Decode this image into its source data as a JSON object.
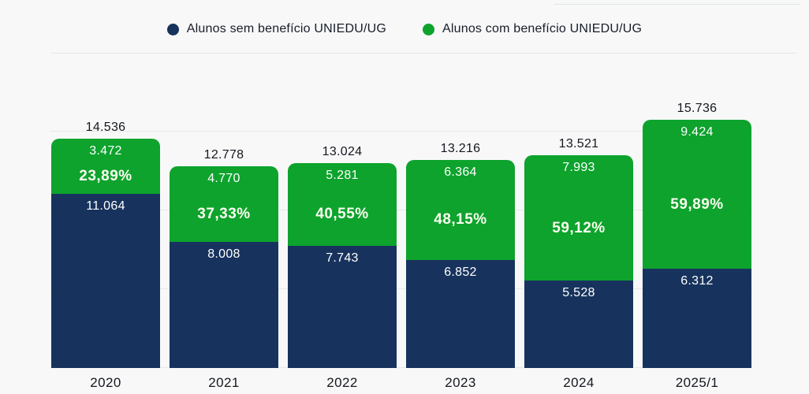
{
  "page": {
    "background": "#f8f8f8",
    "gridline_color": "#e9e9e9",
    "divider_color": "#e8e8e8"
  },
  "legend": {
    "items": [
      {
        "label": "Alunos sem benefício UNIEDU/UG",
        "color": "#17335d"
      },
      {
        "label": "Alunos com benefício UNIEDU/UG",
        "color": "#0da32d"
      }
    ]
  },
  "chart_data": {
    "type": "bar",
    "stacked": true,
    "orientation": "vertical",
    "categories": [
      "2020",
      "2021",
      "2022",
      "2023",
      "2024",
      "2025/1"
    ],
    "series": [
      {
        "name": "Alunos sem benefício UNIEDU/UG",
        "color": "#17335d",
        "values": [
          11064,
          8008,
          7743,
          6852,
          5528,
          6312
        ],
        "value_labels": [
          "11.064",
          "8.008",
          "7.743",
          "6.852",
          "5.528",
          "6.312"
        ]
      },
      {
        "name": "Alunos com benefício UNIEDU/UG",
        "color": "#0da32d",
        "values": [
          3472,
          4770,
          5281,
          6364,
          7993,
          9424
        ],
        "value_labels": [
          "3.472",
          "4.770",
          "5.281",
          "6.364",
          "7.993",
          "9.424"
        ]
      }
    ],
    "totals": [
      14536,
      12778,
      13024,
      13216,
      13521,
      15736
    ],
    "total_labels": [
      "14.536",
      "12.778",
      "13.024",
      "13.216",
      "13.521",
      "15.736"
    ],
    "percent_labels": [
      "23,89%",
      "37,33%",
      "40,55%",
      "48,15%",
      "59,12%",
      "59,89%"
    ],
    "percent_text_color": "#fcfdf0",
    "ylim": [
      0,
      16250
    ],
    "gridline_values": [
      0,
      5000,
      10000,
      15000
    ],
    "grid": "horizontal",
    "legend_position": "top",
    "xlabel": "",
    "ylabel": ""
  }
}
